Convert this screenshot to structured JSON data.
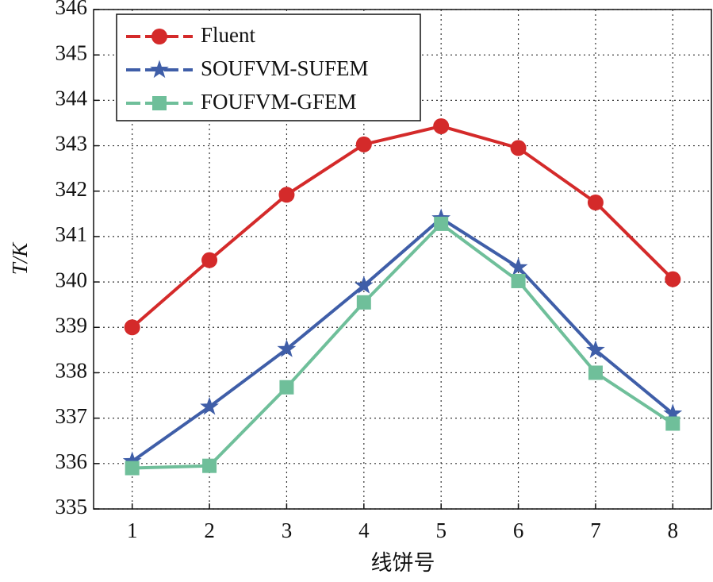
{
  "chart_data": {
    "type": "line",
    "x_label": "线饼号",
    "y_label": "T/K",
    "x": [
      1,
      2,
      3,
      4,
      5,
      6,
      7,
      8
    ],
    "series": [
      {
        "name": "Fluent",
        "color": "#d42a2a",
        "marker": "circle",
        "values": [
          339.0,
          340.48,
          341.92,
          343.03,
          343.43,
          342.95,
          341.75,
          340.06
        ]
      },
      {
        "name": "SOUFVM-SUFEM",
        "color": "#3f5ea8",
        "marker": "star",
        "values": [
          336.05,
          337.25,
          338.52,
          339.92,
          341.4,
          340.32,
          338.5,
          337.1
        ]
      },
      {
        "name": "FOUFVM-GFEM",
        "color": "#6fbf9a",
        "marker": "square",
        "values": [
          335.9,
          335.95,
          337.68,
          339.55,
          341.28,
          340.02,
          338.0,
          336.88
        ]
      }
    ],
    "xlim": [
      0.5,
      8.5
    ],
    "xticks": [
      1,
      2,
      3,
      4,
      5,
      6,
      7,
      8
    ],
    "ylim": [
      335,
      346
    ],
    "yticks": [
      335,
      336,
      337,
      338,
      339,
      340,
      341,
      342,
      343,
      344,
      345,
      346
    ],
    "grid": true,
    "legend": "upper left"
  }
}
